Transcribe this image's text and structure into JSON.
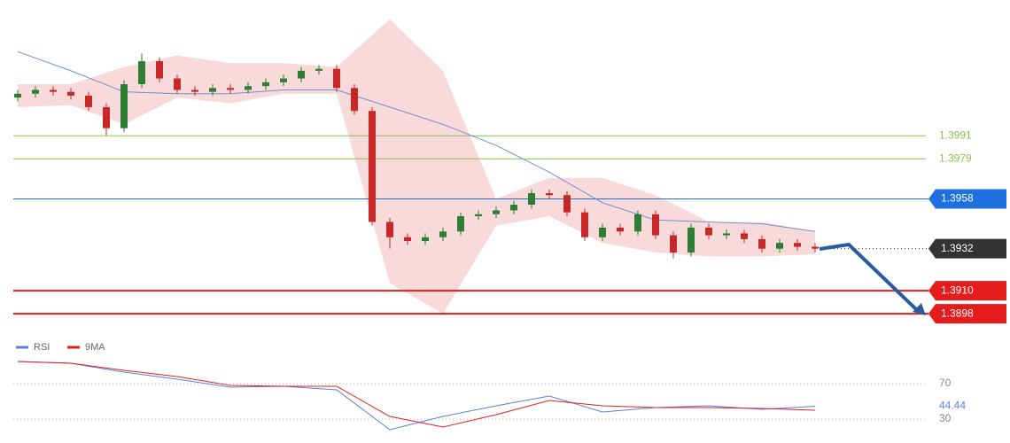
{
  "chart_data": [
    {
      "type": "candlestick",
      "open": [
        1.4011,
        1.4013,
        1.4015,
        1.4014,
        1.4012,
        1.4006,
        1.3995,
        1.4018,
        1.403,
        1.4021,
        1.4015,
        1.4014,
        1.4016,
        1.4015,
        1.4017,
        1.4019,
        1.4021,
        1.4025,
        1.4026,
        1.4016,
        1.4004,
        1.3946,
        1.3938,
        1.3936,
        1.3938,
        1.3941,
        1.3949,
        1.395,
        1.3952,
        1.3955,
        1.3961,
        1.396,
        1.3951,
        1.3938,
        1.3943,
        1.3941,
        1.395,
        1.3939,
        1.393,
        1.3943,
        1.3939,
        1.394,
        1.3937,
        1.3932,
        1.3935,
        1.3933
      ],
      "high": [
        1.4015,
        1.4017,
        1.4017,
        1.4016,
        1.4014,
        1.4008,
        1.402,
        1.4034,
        1.4032,
        1.4023,
        1.4017,
        1.4018,
        1.4018,
        1.4019,
        1.4021,
        1.4023,
        1.4027,
        1.4028,
        1.4028,
        1.4018,
        1.4006,
        1.3948,
        1.394,
        1.394,
        1.3943,
        1.3951,
        1.3952,
        1.3954,
        1.3957,
        1.3963,
        1.3963,
        1.3962,
        1.3953,
        1.3945,
        1.3945,
        1.3952,
        1.3952,
        1.3941,
        1.3945,
        1.3945,
        1.3942,
        1.3942,
        1.3939,
        1.3937,
        1.3937,
        1.3935
      ],
      "low": [
        1.4009,
        1.4011,
        1.4012,
        1.401,
        1.4004,
        1.3991,
        1.3993,
        1.4016,
        1.4019,
        1.4013,
        1.4012,
        1.4012,
        1.4013,
        1.4013,
        1.4015,
        1.4017,
        1.4019,
        1.4023,
        1.4014,
        1.4002,
        1.3944,
        1.3932,
        1.3934,
        1.3934,
        1.3936,
        1.3939,
        1.3947,
        1.3948,
        1.395,
        1.3953,
        1.3958,
        1.3949,
        1.3936,
        1.3936,
        1.3939,
        1.3939,
        1.3937,
        1.3927,
        1.3928,
        1.3937,
        1.3937,
        1.3935,
        1.393,
        1.393,
        1.3931,
        1.393
      ],
      "close": [
        1.4013,
        1.4015,
        1.4014,
        1.4012,
        1.4006,
        1.3995,
        1.4018,
        1.403,
        1.4021,
        1.4015,
        1.4014,
        1.4016,
        1.4015,
        1.4017,
        1.4019,
        1.4021,
        1.4025,
        1.4026,
        1.4016,
        1.4004,
        1.3946,
        1.3938,
        1.3936,
        1.3938,
        1.3941,
        1.3949,
        1.395,
        1.3952,
        1.3955,
        1.3961,
        1.396,
        1.3951,
        1.3938,
        1.3943,
        1.3941,
        1.395,
        1.3939,
        1.393,
        1.3943,
        1.3939,
        1.394,
        1.3937,
        1.3932,
        1.3935,
        1.3933,
        1.3932
      ],
      "up_color": "#2e7d32",
      "down_color": "#c62828",
      "ylim": [
        1.3886,
        1.4062
      ],
      "band_index": [
        0,
        3,
        6,
        9,
        12,
        15,
        18,
        21,
        24,
        27,
        30,
        33,
        36,
        39,
        42,
        45
      ],
      "band_upper": [
        1.4018,
        1.4018,
        1.4027,
        1.4033,
        1.4029,
        1.4029,
        1.4027,
        1.4052,
        1.4025,
        1.3958,
        1.3969,
        1.3969,
        1.396,
        1.3946,
        1.3946,
        1.3941
      ],
      "band_lower": [
        1.4006,
        1.4007,
        1.3997,
        1.4011,
        1.4008,
        1.4013,
        1.4013,
        1.3914,
        1.3898,
        1.3944,
        1.3949,
        1.3935,
        1.393,
        1.3928,
        1.3928,
        1.3929
      ],
      "band_color": "#f8d4d4",
      "ma": [
        1.4035,
        1.4025,
        1.4014,
        1.4013,
        1.4013,
        1.4015,
        1.4015,
        1.4006,
        1.3997,
        1.3986,
        1.3972,
        1.3956,
        1.3947,
        1.3946,
        1.3945,
        1.3941
      ],
      "ma_color": "#6f8fd8",
      "levels": [
        {
          "value": 1.3991,
          "label": "1.3991",
          "color": "#8bc34a",
          "style": "text"
        },
        {
          "value": 1.3979,
          "label": "1.3979",
          "color": "#8bc34a",
          "style": "text"
        },
        {
          "value": 1.3958,
          "label": "1.3958",
          "color": "#1e6fe0",
          "style": "tag"
        },
        {
          "value": 1.3932,
          "label": "1.3932",
          "color": "#333333",
          "style": "dotted"
        },
        {
          "value": 1.391,
          "label": "1.3910",
          "color": "#e51c1c",
          "style": "tag"
        },
        {
          "value": 1.3898,
          "label": "1.3898",
          "color": "#e51c1c",
          "style": "tag"
        }
      ]
    },
    {
      "type": "line",
      "x_index": [
        0,
        3,
        6,
        9,
        12,
        15,
        18,
        21,
        24,
        27,
        30,
        33,
        36,
        39,
        42,
        45
      ],
      "series": [
        {
          "name": "RSI",
          "color": "#5b7fdc",
          "values": [
            95,
            93,
            83,
            75,
            66,
            67,
            63,
            18,
            33,
            45,
            56,
            38,
            43,
            45,
            41,
            44.44
          ]
        },
        {
          "name": "9MA",
          "color": "#e02020",
          "values": [
            95,
            93,
            85,
            78,
            68,
            67,
            67,
            33,
            21,
            35,
            51,
            45,
            43,
            43,
            42,
            40
          ]
        }
      ],
      "ylim": [
        0,
        100
      ],
      "yticks": [
        30,
        70
      ],
      "last_value": 44.44
    }
  ]
}
